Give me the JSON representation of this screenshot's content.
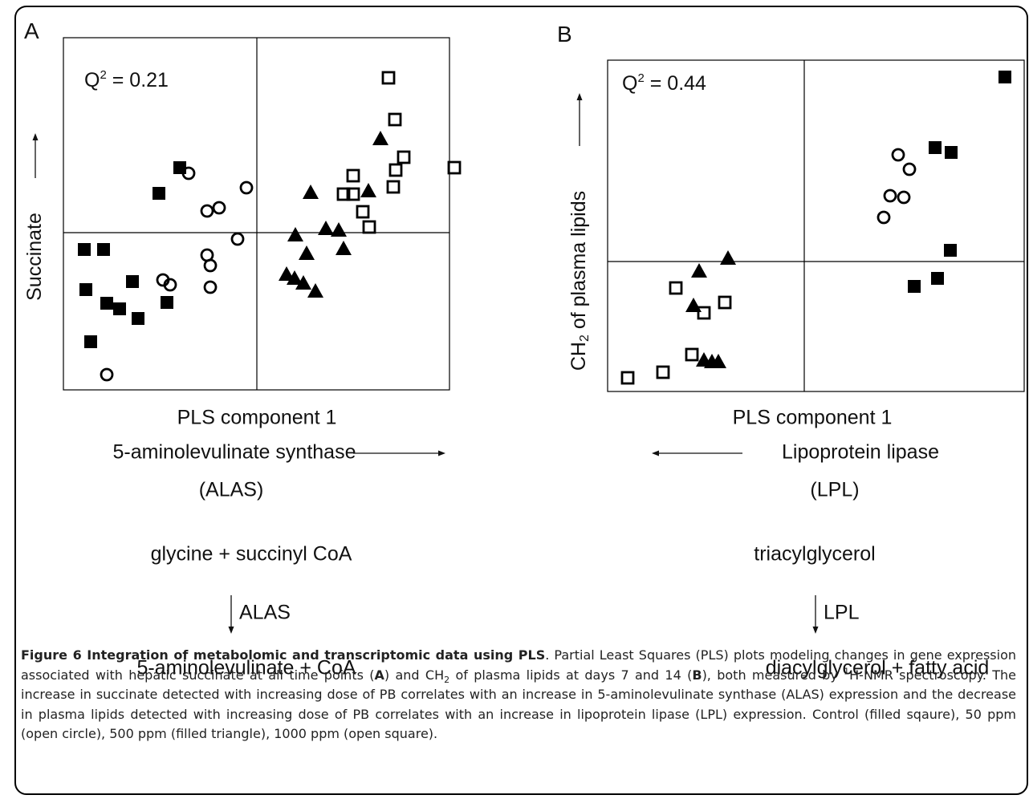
{
  "chart_data": [
    {
      "type": "scatter",
      "panel": "A",
      "annotation": {
        "base": "Q",
        "sup": "2",
        "rest": " = 0.21"
      },
      "ylabel": {
        "parts": [
          {
            "text": "Succinate"
          }
        ]
      },
      "xlabel": "PLS component 1",
      "xlim": [
        -24.1,
        24.0
      ],
      "ylim": [
        -19.6,
        24.3
      ],
      "series": [
        {
          "marker": "square",
          "filled": true,
          "color": "#000000",
          "x": [
            -9.6,
            -12.2,
            -21.5,
            -19.1,
            -21.3,
            -15.5,
            -18.7,
            -17.1,
            -14.8,
            -11.2,
            -20.7
          ],
          "y": [
            8.1,
            4.9,
            -2.1,
            -2.1,
            -7.1,
            -6.1,
            -8.8,
            -9.5,
            -10.7,
            -8.7,
            -13.6
          ]
        },
        {
          "marker": "circle",
          "filled": false,
          "color": "#000000",
          "x": [
            -8.5,
            -1.3,
            -6.2,
            -4.7,
            -2.4,
            -6.2,
            -5.8,
            -5.8,
            -11.7,
            -10.8,
            -18.7
          ],
          "y": [
            7.4,
            5.6,
            2.7,
            3.1,
            -0.8,
            -2.8,
            -4.1,
            -6.8,
            -5.9,
            -6.5,
            -17.7
          ]
        },
        {
          "marker": "triangle",
          "filled": true,
          "color": "#000000",
          "x": [
            15.4,
            6.7,
            13.9,
            4.8,
            8.6,
            10.2,
            6.2,
            10.8,
            3.7,
            4.7,
            5.8,
            7.3
          ],
          "y": [
            11.7,
            5.0,
            5.2,
            -0.3,
            0.5,
            0.3,
            -2.6,
            -2.0,
            -5.2,
            -5.7,
            -6.3,
            -7.3
          ]
        },
        {
          "marker": "square",
          "filled": false,
          "color": "#000000",
          "x": [
            16.4,
            17.2,
            18.3,
            17.3,
            17.0,
            24.6,
            12.0,
            10.8,
            12.0,
            13.2,
            14.0
          ],
          "y": [
            19.3,
            14.1,
            9.4,
            7.8,
            5.7,
            8.1,
            7.1,
            4.8,
            4.8,
            2.6,
            0.7
          ]
        }
      ],
      "pathway": {
        "gene": "5-aminolevulinate synthase",
        "gene_direction": "right",
        "abbr": "(ALAS)",
        "substrate": "glycine + succinyl CoA",
        "enzyme": "ALAS",
        "product": "5-aminolevulinate + CoA"
      }
    },
    {
      "type": "scatter",
      "panel": "B",
      "annotation": {
        "base": "Q",
        "sup": "2",
        "rest": " = 0.44"
      },
      "ylabel": {
        "parts": [
          {
            "text": "CH"
          },
          {
            "text": "2",
            "style": "sub"
          },
          {
            "text": " of plasma lipids"
          }
        ]
      },
      "xlabel": "PLS component 1",
      "xlim": [
        -24.5,
        27.4
      ],
      "ylim": [
        -16.2,
        25.1
      ],
      "series": [
        {
          "marker": "square",
          "filled": true,
          "color": "#000000",
          "x": [
            25.0,
            16.3,
            18.3,
            18.2,
            16.6,
            13.7
          ],
          "y": [
            23.0,
            14.2,
            13.6,
            1.4,
            -2.1,
            -3.1
          ]
        },
        {
          "marker": "circle",
          "filled": false,
          "color": "#000000",
          "x": [
            11.7,
            13.1,
            10.7,
            12.4,
            9.9
          ],
          "y": [
            13.3,
            11.5,
            8.2,
            8.0,
            5.5
          ]
        },
        {
          "marker": "triangle",
          "filled": true,
          "color": "#000000",
          "x": [
            -9.5,
            -13.1,
            -13.8,
            -12.5,
            -11.5,
            -10.7
          ],
          "y": [
            0.4,
            -1.2,
            -5.5,
            -12.3,
            -12.5,
            -12.5
          ]
        },
        {
          "marker": "square",
          "filled": false,
          "color": "#000000",
          "x": [
            -16.0,
            -9.9,
            -12.5,
            -14.0,
            -17.6,
            -22.0
          ],
          "y": [
            -3.3,
            -5.1,
            -6.4,
            -11.6,
            -13.8,
            -14.5
          ]
        }
      ],
      "pathway": {
        "gene": "Lipoprotein lipase",
        "gene_direction": "left",
        "abbr": "(LPL)",
        "substrate": "triacylglycerol",
        "enzyme": "LPL",
        "product": "diacylglycerol + fatty acid"
      }
    }
  ],
  "caption": [
    {
      "text": "Figure 6 Integration of metabolomic and transcriptomic data using PLS",
      "style": "bold"
    },
    {
      "text": ". Partial Least Squares (PLS) plots modeling changes in gene expression associated with hepatic succinate at all time points ("
    },
    {
      "text": "A",
      "style": "bold"
    },
    {
      "text": ") and CH"
    },
    {
      "text": "2",
      "style": "sub"
    },
    {
      "text": " of plasma lipids at days 7 and 14 ("
    },
    {
      "text": "B",
      "style": "bold"
    },
    {
      "text": "), both measured by "
    },
    {
      "text": "1",
      "style": "sup"
    },
    {
      "text": "H-NMR spectroscopy. The increase in succinate detected with increasing dose of PB correlates with an increase in 5-aminolevulinate synthase (ALAS) expression and the decrease in plasma lipids detected with increasing dose of PB correlates with an increase in lipoprotein lipase (LPL) expression. Control (filled sqaure), 50 ppm (open circle), 500 ppm (filled triangle), 1000 ppm (open square)."
    }
  ]
}
